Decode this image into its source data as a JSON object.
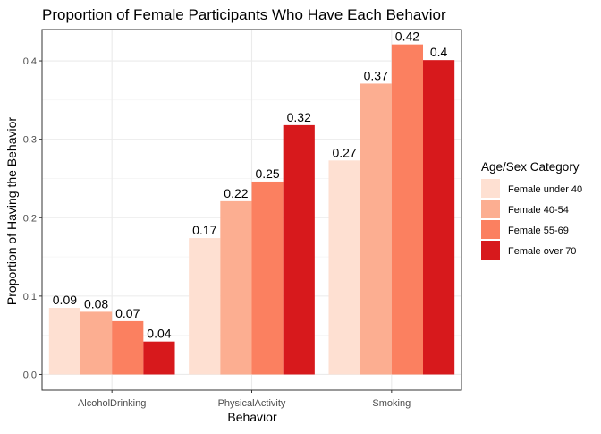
{
  "chart_data": {
    "type": "bar",
    "title": "Proportion of Female Participants Who Have Each Behavior",
    "xlabel": "Behavior",
    "ylabel": "Proportion of Having the Behavior",
    "categories": [
      "AlcoholDrinking",
      "PhysicalActivity",
      "Smoking"
    ],
    "series": [
      {
        "name": "Female under 40",
        "color": "#fee0d2",
        "values": [
          0.085,
          0.174,
          0.273
        ],
        "labels": [
          "0.09",
          "0.17",
          "0.27"
        ]
      },
      {
        "name": "Female 40-54",
        "color": "#fcae91",
        "values": [
          0.08,
          0.221,
          0.371
        ],
        "labels": [
          "0.08",
          "0.22",
          "0.37"
        ]
      },
      {
        "name": "Female 55-69",
        "color": "#fb8060",
        "values": [
          0.068,
          0.246,
          0.421
        ],
        "labels": [
          "0.07",
          "0.25",
          "0.42"
        ]
      },
      {
        "name": "Female over 70",
        "color": "#d7191c",
        "values": [
          0.042,
          0.318,
          0.401
        ],
        "labels": [
          "0.04",
          "0.32",
          "0.4"
        ]
      }
    ],
    "ylim": [
      -0.02,
      0.44
    ],
    "yticks": [
      0.0,
      0.1,
      0.2,
      0.3,
      0.4
    ],
    "ytick_labels": [
      "0.0",
      "0.1",
      "0.2",
      "0.3",
      "0.4"
    ],
    "grid": true,
    "legend": {
      "title": "Age/Sex Category",
      "position": "right"
    }
  }
}
